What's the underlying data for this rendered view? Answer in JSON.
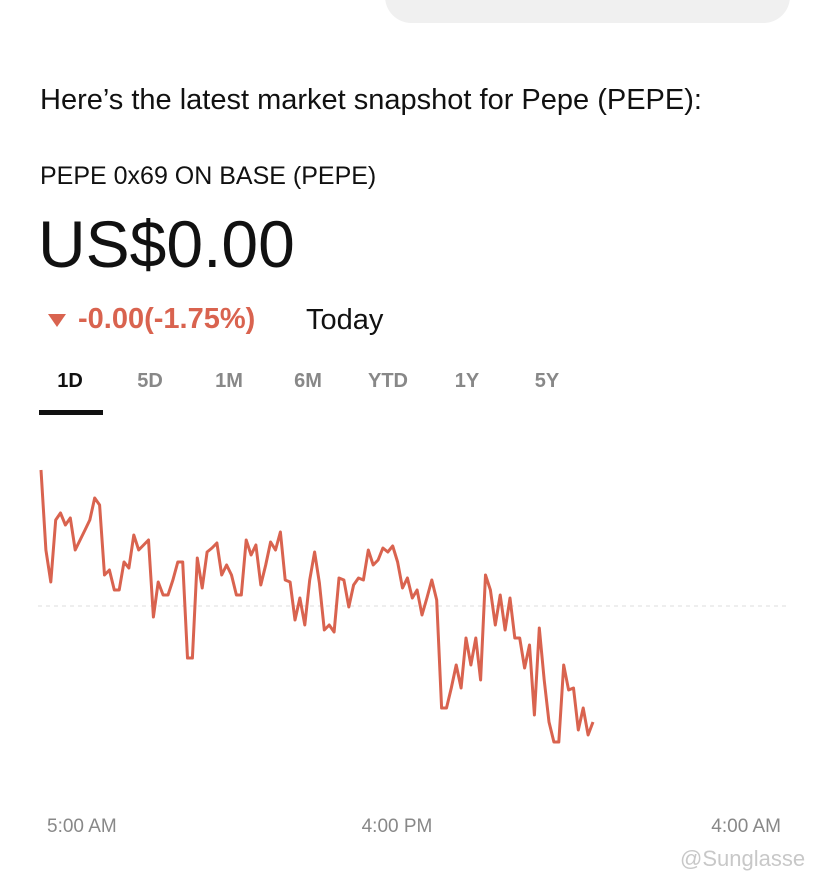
{
  "message": {
    "intro": "Here’s the latest market snapshot for Pepe (PEPE):"
  },
  "quote": {
    "name": "PEPE 0x69 ON BASE (PEPE)",
    "price": "US$0.00",
    "change": "-0.00(-1.75%)",
    "period": "Today"
  },
  "tabs": [
    "1D",
    "5D",
    "1M",
    "6M",
    "YTD",
    "1Y",
    "5Y"
  ],
  "active_tab": "1D",
  "chart_data": {
    "type": "line",
    "series": [
      {
        "color": "#d9634f",
        "values": [
          310,
          230,
          198,
          260,
          267,
          255,
          262,
          230,
          240,
          250,
          260,
          282,
          275,
          205,
          210,
          190,
          190,
          218,
          212,
          245,
          230,
          235,
          240,
          163,
          198,
          185,
          185,
          200,
          218,
          218,
          122,
          122,
          222,
          192,
          228,
          232,
          237,
          205,
          215,
          205,
          185,
          185,
          240,
          225,
          235,
          195,
          215,
          238,
          230,
          248,
          200,
          198,
          160,
          182,
          155,
          200,
          228,
          197,
          150,
          155,
          148,
          202,
          200,
          173,
          195,
          202,
          200,
          230,
          215,
          220,
          232,
          228,
          234,
          218,
          192,
          202,
          182,
          190,
          165,
          182,
          200,
          180,
          72,
          72,
          92,
          115,
          92,
          142,
          115,
          142,
          100,
          205,
          190,
          155,
          185,
          150,
          182,
          142,
          142,
          112,
          135,
          65,
          152,
          100,
          58,
          38,
          38,
          115,
          90,
          92,
          50,
          72,
          45,
          58
        ]
      }
    ],
    "reference_line": 174,
    "ylim": [
      0,
      320
    ],
    "x_labels": [
      "5:00 AM",
      "4:00 PM",
      "4:00 AM"
    ]
  },
  "watermark": "@Sunglasse"
}
